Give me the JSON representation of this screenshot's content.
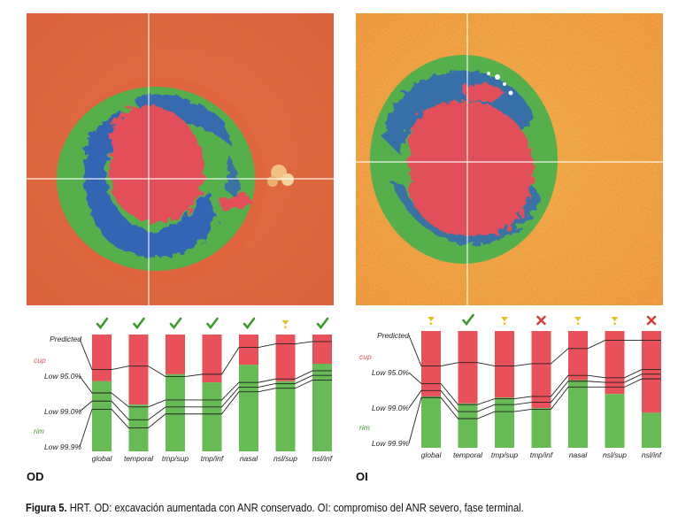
{
  "figure": {
    "caption_label": "Figura 5.",
    "caption_text": " HRT. OD: excavación aumentada con ANR conservado. OI: compromiso del ANR severo, fase terminal."
  },
  "panels": [
    {
      "eye_label": "OD",
      "chart_data": {
        "type": "bar",
        "categories": [
          "global",
          "temporal",
          "tmp/sup",
          "tmp/inf",
          "nasal",
          "nsl/sup",
          "nsl/inf"
        ],
        "status": [
          "check",
          "check",
          "check",
          "check",
          "check",
          "warn",
          "check"
        ],
        "cup_fraction": [
          0.4,
          0.6,
          0.34,
          0.41,
          0.26,
          0.4,
          0.25
        ],
        "threshold_labels": [
          "Predicted",
          "Low 95.0%",
          "Low 99.0%",
          "Low 99.9%"
        ],
        "thresholds": {
          "predicted": [
            0.3,
            0.27,
            0.36,
            0.34,
            0.11,
            0.08,
            0.06
          ],
          "low95": [
            0.5,
            0.62,
            0.56,
            0.56,
            0.41,
            0.38,
            0.31
          ],
          "low99": [
            0.57,
            0.73,
            0.62,
            0.62,
            0.45,
            0.42,
            0.35
          ],
          "low99_9": [
            0.64,
            0.8,
            0.68,
            0.68,
            0.49,
            0.46,
            0.39
          ]
        },
        "side_labels": [
          "cup",
          "rim"
        ]
      }
    },
    {
      "eye_label": "OI",
      "chart_data": {
        "type": "bar",
        "categories": [
          "global",
          "temporal",
          "tmp/sup",
          "tmp/inf",
          "nasal",
          "nsl/sup",
          "nsl/inf"
        ],
        "status": [
          "warn",
          "check",
          "warn",
          "cross",
          "warn",
          "warn",
          "cross"
        ],
        "cup_fraction": [
          0.56,
          0.62,
          0.57,
          0.66,
          0.42,
          0.54,
          0.7
        ],
        "threshold_labels": [
          "Predicted",
          "Low 95.0%",
          "Low 99.0%",
          "Low 99.9%"
        ],
        "thresholds": {
          "predicted": [
            0.3,
            0.27,
            0.3,
            0.28,
            0.15,
            0.08,
            0.08
          ],
          "low95": [
            0.45,
            0.63,
            0.58,
            0.56,
            0.38,
            0.4,
            0.33
          ],
          "low99": [
            0.51,
            0.69,
            0.63,
            0.61,
            0.43,
            0.44,
            0.37
          ],
          "low99_9": [
            0.57,
            0.75,
            0.69,
            0.67,
            0.48,
            0.48,
            0.41
          ]
        },
        "side_labels": [
          "cup",
          "rim"
        ]
      }
    }
  ],
  "colors": {
    "cup": "#e8505a",
    "rim": "#66bb55",
    "check": "#3f9a2e",
    "warn": "#e4c21c",
    "cross": "#d9403a",
    "cup_label": "#e35562",
    "rim_label": "#3e9b2f"
  }
}
